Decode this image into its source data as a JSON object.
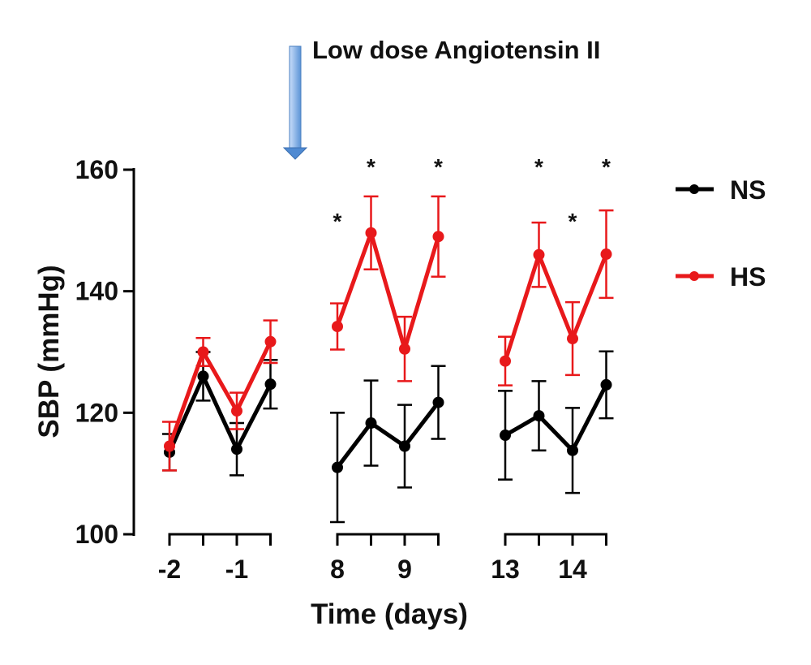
{
  "chart_data": {
    "type": "line",
    "title": "",
    "annotation": "Low dose Angiotensin II",
    "xlabel": "Time (days)",
    "ylabel": "SBP (mmHg)",
    "ylim": [
      100,
      160
    ],
    "yticks": [
      100,
      120,
      140,
      160
    ],
    "groups": [
      {
        "tick_labels": [
          "-2",
          "-1"
        ],
        "x": [
          -2,
          -1.5,
          -1,
          -0.5
        ]
      },
      {
        "tick_labels": [
          "8",
          "9"
        ],
        "x": [
          8,
          8.5,
          9,
          9.5
        ]
      },
      {
        "tick_labels": [
          "13",
          "14"
        ],
        "x": [
          13,
          13.5,
          14,
          14.5
        ]
      }
    ],
    "series": [
      {
        "name": "NS",
        "color": "#000000",
        "values": [
          [
            113.5,
            126,
            114,
            124.7
          ],
          [
            111,
            118.3,
            114.5,
            121.7
          ],
          [
            116.3,
            119.5,
            113.8,
            124.6
          ]
        ],
        "errors": [
          [
            3,
            4,
            4.3,
            4
          ],
          [
            9,
            7,
            6.8,
            6
          ],
          [
            7.3,
            5.7,
            7,
            5.5
          ]
        ]
      },
      {
        "name": "HS",
        "color": "#e8191b",
        "values": [
          [
            114.5,
            130,
            120.3,
            131.7
          ],
          [
            134.2,
            149.6,
            130.5,
            149
          ],
          [
            128.5,
            146,
            132.2,
            146.1
          ]
        ],
        "errors": [
          [
            4,
            2.3,
            3,
            3.5
          ],
          [
            3.8,
            6,
            5.3,
            6.6
          ],
          [
            4,
            5.3,
            6,
            7.2
          ]
        ]
      }
    ],
    "significance": [
      {
        "x": 8,
        "label": "*",
        "level": "low"
      },
      {
        "x": 8.5,
        "label": "*",
        "level": "high"
      },
      {
        "x": 9.5,
        "label": "*",
        "level": "high"
      },
      {
        "x": 13.5,
        "label": "*",
        "level": "high"
      },
      {
        "x": 14,
        "label": "*",
        "level": "low"
      },
      {
        "x": 14.5,
        "label": "*",
        "level": "high"
      }
    ],
    "legend": {
      "position": "right",
      "entries": [
        "NS",
        "HS"
      ]
    }
  }
}
